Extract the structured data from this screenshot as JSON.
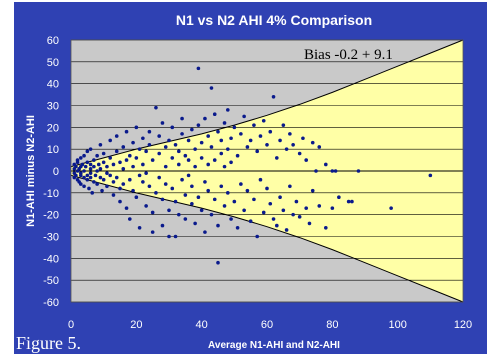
{
  "chart_data": {
    "type": "scatter",
    "title": "N1 vs N2 AHI 4% Comparison",
    "xlabel": "Average N1-AHI and N2-AHI",
    "ylabel": "N1-AHI minus N2-AHI",
    "xlim": [
      0,
      120
    ],
    "ylim": [
      -60,
      60
    ],
    "x_ticks": [
      "0",
      "20",
      "40",
      "60",
      "80",
      "100",
      "120"
    ],
    "y_ticks": [
      "60",
      "50",
      "40",
      "30",
      "20",
      "10",
      "0",
      "-10",
      "-20",
      "-30",
      "-40",
      "-50",
      "-60"
    ],
    "annotation": "Bias -0.2 + 9.1",
    "grid": true,
    "colors": {
      "frame": "#2f41b3",
      "plot_bg": "#c9c9c9",
      "band_fill": "#ffffa6",
      "points": "#0a1a8c"
    },
    "band": {
      "center": 0,
      "upper": [
        [
          0,
          2
        ],
        [
          10,
          6
        ],
        [
          20,
          10
        ],
        [
          30,
          13.5
        ],
        [
          40,
          17
        ],
        [
          50,
          21
        ],
        [
          60,
          25.5
        ],
        [
          70,
          30.5
        ],
        [
          80,
          36
        ],
        [
          90,
          42
        ],
        [
          100,
          48
        ],
        [
          110,
          54
        ],
        [
          120,
          60
        ]
      ],
      "lower": [
        [
          0,
          -2
        ],
        [
          10,
          -6
        ],
        [
          20,
          -10
        ],
        [
          30,
          -13.5
        ],
        [
          40,
          -17
        ],
        [
          50,
          -21
        ],
        [
          60,
          -25.5
        ],
        [
          70,
          -30.5
        ],
        [
          80,
          -36
        ],
        [
          90,
          -42
        ],
        [
          100,
          -48
        ],
        [
          110,
          -54
        ],
        [
          120,
          -60
        ]
      ]
    },
    "points": [
      [
        1,
        1
      ],
      [
        1,
        -1
      ],
      [
        1,
        3
      ],
      [
        1,
        -3
      ],
      [
        1.5,
        2
      ],
      [
        1.5,
        -2
      ],
      [
        2,
        0
      ],
      [
        2,
        4
      ],
      [
        2,
        -4
      ],
      [
        2,
        5
      ],
      [
        2.5,
        -5
      ],
      [
        2.5,
        1
      ],
      [
        3,
        -1
      ],
      [
        3,
        2
      ],
      [
        3,
        -2
      ],
      [
        3,
        6
      ],
      [
        3,
        -6
      ],
      [
        3.5,
        3
      ],
      [
        4,
        -3
      ],
      [
        4,
        0
      ],
      [
        4,
        7
      ],
      [
        4,
        -7
      ],
      [
        4.5,
        2
      ],
      [
        5,
        -2
      ],
      [
        5,
        4
      ],
      [
        5,
        -4
      ],
      [
        5,
        9
      ],
      [
        5.5,
        -8
      ],
      [
        6,
        1
      ],
      [
        6,
        -1
      ],
      [
        6,
        3
      ],
      [
        6,
        -3
      ],
      [
        6,
        10
      ],
      [
        6.5,
        -10
      ],
      [
        7,
        5
      ],
      [
        7,
        -5
      ],
      [
        7,
        2
      ],
      [
        7.5,
        -2
      ],
      [
        8,
        0
      ],
      [
        8,
        7
      ],
      [
        8,
        -6
      ],
      [
        8.5,
        3
      ],
      [
        9,
        -3
      ],
      [
        9,
        1
      ],
      [
        9,
        12
      ],
      [
        9.5,
        -9
      ],
      [
        10,
        4
      ],
      [
        10,
        -4
      ],
      [
        10,
        8
      ],
      [
        11,
        -1
      ],
      [
        11,
        2
      ],
      [
        11,
        -7
      ],
      [
        12,
        6
      ],
      [
        12,
        -2
      ],
      [
        12,
        14
      ],
      [
        13,
        -5
      ],
      [
        13,
        3
      ],
      [
        13,
        -11
      ],
      [
        14,
        9
      ],
      [
        14,
        -3
      ],
      [
        14,
        16
      ],
      [
        15,
        -8
      ],
      [
        15,
        4
      ],
      [
        15,
        -14
      ],
      [
        16,
        11
      ],
      [
        16,
        1
      ],
      [
        16,
        -6
      ],
      [
        17,
        5
      ],
      [
        17,
        -17
      ],
      [
        17,
        18
      ],
      [
        18,
        -4
      ],
      [
        18,
        7
      ],
      [
        18,
        -22
      ],
      [
        19,
        13
      ],
      [
        19,
        -9
      ],
      [
        19,
        2
      ],
      [
        20,
        20
      ],
      [
        20,
        -12
      ],
      [
        20,
        6
      ],
      [
        21,
        -2
      ],
      [
        21,
        10
      ],
      [
        21,
        -26
      ],
      [
        22,
        15
      ],
      [
        22,
        -5
      ],
      [
        22,
        3
      ],
      [
        23,
        -16
      ],
      [
        23,
        9
      ],
      [
        23,
        -1
      ],
      [
        24,
        12
      ],
      [
        24,
        -7
      ],
      [
        24,
        18
      ],
      [
        25,
        -19
      ],
      [
        25,
        5
      ],
      [
        25,
        -28
      ],
      [
        26,
        29
      ],
      [
        26,
        -10
      ],
      [
        27,
        8
      ],
      [
        27,
        -3
      ],
      [
        27,
        16
      ],
      [
        28,
        -13
      ],
      [
        28,
        22
      ],
      [
        28,
        -25
      ],
      [
        29,
        11
      ],
      [
        29,
        -6
      ],
      [
        29,
        2
      ],
      [
        30,
        -18
      ],
      [
        30,
        14
      ],
      [
        30,
        -30
      ],
      [
        31,
        6
      ],
      [
        31,
        -8
      ],
      [
        31,
        20
      ],
      [
        32,
        -30
      ],
      [
        32,
        12
      ],
      [
        32,
        -14
      ],
      [
        33,
        3
      ],
      [
        33,
        -20
      ],
      [
        33,
        9
      ],
      [
        34,
        17
      ],
      [
        34,
        -4
      ],
      [
        34,
        24
      ],
      [
        35,
        -11
      ],
      [
        35,
        7
      ],
      [
        35,
        -22
      ],
      [
        36,
        14
      ],
      [
        36,
        -2
      ],
      [
        36,
        5
      ],
      [
        37,
        -15
      ],
      [
        37,
        19
      ],
      [
        37,
        -7
      ],
      [
        38,
        10
      ],
      [
        38,
        -24
      ],
      [
        38,
        2
      ],
      [
        39,
        47
      ],
      [
        39,
        -12
      ],
      [
        39,
        21
      ],
      [
        40,
        6
      ],
      [
        40,
        -18
      ],
      [
        40,
        13
      ],
      [
        41,
        -5
      ],
      [
        41,
        24
      ],
      [
        41,
        -28
      ],
      [
        42,
        16
      ],
      [
        42,
        -9
      ],
      [
        42,
        3
      ],
      [
        43,
        -20
      ],
      [
        43,
        38
      ],
      [
        43,
        11
      ],
      [
        44,
        -13
      ],
      [
        44,
        5
      ],
      [
        44,
        26
      ],
      [
        45,
        -25
      ],
      [
        45,
        18
      ],
      [
        45,
        -42
      ],
      [
        46,
        8
      ],
      [
        46,
        -7
      ],
      [
        46,
        14
      ],
      [
        47,
        -16
      ],
      [
        47,
        22
      ],
      [
        47,
        2
      ],
      [
        48,
        10
      ],
      [
        48,
        -10
      ],
      [
        48,
        28
      ],
      [
        49,
        -22
      ],
      [
        49,
        4
      ],
      [
        49,
        15
      ],
      [
        50,
        -14
      ],
      [
        50,
        20
      ],
      [
        51,
        7
      ],
      [
        51,
        -26
      ],
      [
        52,
        -6
      ],
      [
        52,
        17
      ],
      [
        53,
        25
      ],
      [
        53,
        -18
      ],
      [
        54,
        11
      ],
      [
        54,
        -9
      ],
      [
        55,
        -23
      ],
      [
        55,
        14
      ],
      [
        56,
        21
      ],
      [
        56,
        -13
      ],
      [
        57,
        9
      ],
      [
        57,
        -30
      ],
      [
        58,
        16
      ],
      [
        58,
        -4
      ],
      [
        59,
        -19
      ],
      [
        59,
        23
      ],
      [
        60,
        12
      ],
      [
        60,
        -8
      ],
      [
        61,
        -15
      ],
      [
        61,
        18
      ],
      [
        62,
        34
      ],
      [
        62,
        -22
      ],
      [
        63,
        6
      ],
      [
        63,
        -25
      ],
      [
        64,
        14
      ],
      [
        64,
        -12
      ],
      [
        65,
        -18
      ],
      [
        65,
        21
      ],
      [
        66,
        10
      ],
      [
        66,
        -27
      ],
      [
        67,
        -7
      ],
      [
        67,
        17
      ],
      [
        68,
        -20
      ],
      [
        68,
        12
      ],
      [
        69,
        -14
      ],
      [
        70,
        8
      ],
      [
        70,
        -21
      ],
      [
        71,
        15
      ],
      [
        72,
        -17
      ],
      [
        72,
        5
      ],
      [
        73,
        -24
      ],
      [
        74,
        13
      ],
      [
        74,
        -9
      ],
      [
        75,
        0
      ],
      [
        76,
        -16
      ],
      [
        76,
        11
      ],
      [
        78,
        -26
      ],
      [
        78,
        3
      ],
      [
        80,
        0
      ],
      [
        80,
        -17
      ],
      [
        81,
        0
      ],
      [
        82,
        -12
      ],
      [
        85,
        -14
      ],
      [
        86,
        -14
      ],
      [
        88,
        0
      ],
      [
        98,
        -17
      ],
      [
        110,
        -2
      ]
    ]
  },
  "caption": "Figure 5."
}
